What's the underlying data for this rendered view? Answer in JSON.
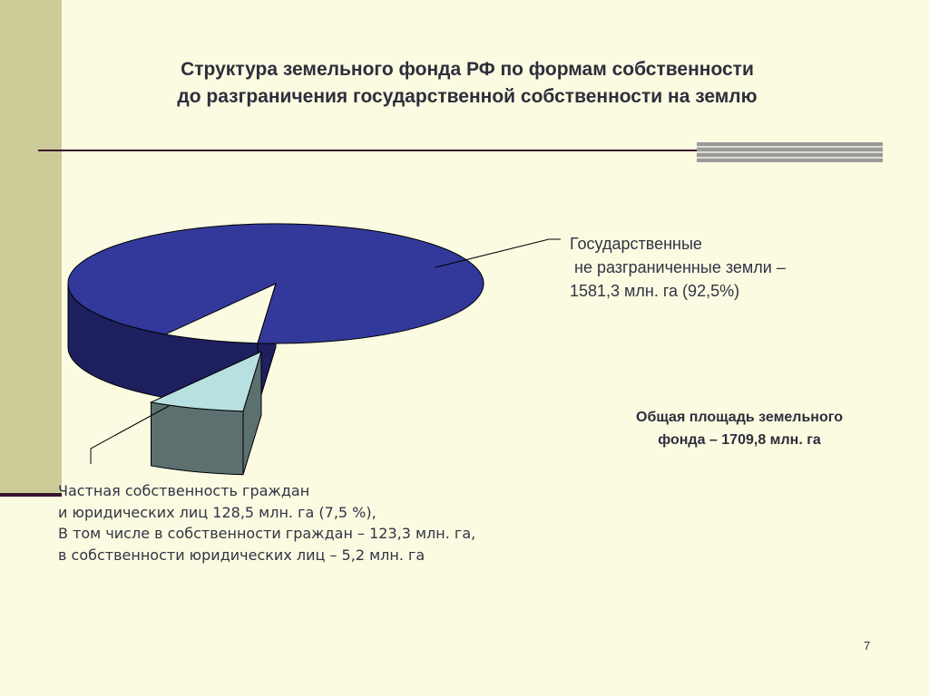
{
  "slide": {
    "title_lines": [
      "Структура земельного фонда РФ по формам собственности",
      "до разграничения государственной собственности на землю"
    ],
    "total_lines": [
      "Общая площадь земельного",
      "фонда – 1709,8 млн. га"
    ],
    "page_number": "7"
  },
  "chart_data": {
    "type": "pie",
    "title": "Структура земельного фонда РФ по формам собственности до разграничения государственной собственности на землю",
    "labels": [
      "Государственные не разграниченные земли",
      "Частная собственность граждан и юридических лиц"
    ],
    "values": [
      1581.3,
      128.5
    ],
    "percent": [
      92.5,
      7.5
    ],
    "unit": "млн. га",
    "total": 1709.8,
    "colors": [
      "#33399a",
      "#b8e0e0"
    ],
    "side_colors": [
      "#1e1f5e",
      "#5c7070"
    ],
    "exploded_slice": 1,
    "three_d": true,
    "callouts": [
      [
        "Государственные",
        " не разграниченные земли –",
        "1581,3 млн. га (92,5%)"
      ],
      [
        "Частная собственность граждан",
        "и юридических лиц 128,5 млн. га (7,5 %),",
        "В том числе в собственности граждан – 123,3 млн. га,",
        "в собственности юридических лиц – 5,2 млн. га"
      ]
    ]
  }
}
